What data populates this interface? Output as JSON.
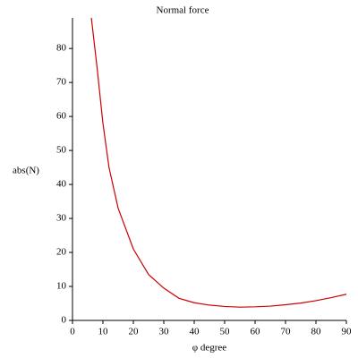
{
  "chart_data": {
    "type": "line",
    "title": "Normal force",
    "x_label": "φ degree",
    "y_label": "abs(N)",
    "x": [
      6.2,
      8,
      10,
      12,
      15,
      20,
      25,
      30,
      35,
      40,
      45,
      50,
      55,
      60,
      65,
      70,
      75,
      80,
      85,
      90
    ],
    "series": [
      {
        "name": "abs(N)",
        "color": "#cc0000",
        "values": [
          89,
          75,
          58,
          45,
          33,
          21,
          13.5,
          9.5,
          6.5,
          5.2,
          4.5,
          4.1,
          3.9,
          4.0,
          4.2,
          4.6,
          5.1,
          5.8,
          6.7,
          7.7
        ]
      }
    ],
    "xlim": [
      0,
      90
    ],
    "ylim": [
      0,
      89
    ],
    "xticks": [
      0,
      10,
      20,
      30,
      40,
      50,
      60,
      70,
      80,
      90
    ],
    "yticks": [
      0,
      10,
      20,
      30,
      40,
      50,
      60,
      70,
      80
    ]
  }
}
